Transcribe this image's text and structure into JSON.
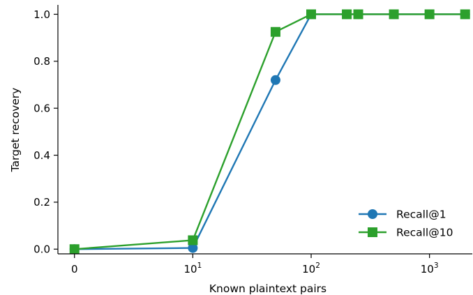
{
  "chart_data": {
    "type": "line",
    "title": "",
    "xlabel": "Known plaintext pairs",
    "ylabel": "Target recovery",
    "x_scale": "symlog",
    "x_linthresh": 10,
    "xlim": [
      -1.4,
      2300
    ],
    "ylim": [
      -0.02,
      1.04
    ],
    "grid": false,
    "legend_position": "lower-right",
    "x_ticks": [
      {
        "value": 0,
        "base": "0",
        "exp": ""
      },
      {
        "value": 10,
        "base": "10",
        "exp": "1"
      },
      {
        "value": 100,
        "base": "10",
        "exp": "2"
      },
      {
        "value": 1000,
        "base": "10",
        "exp": "3"
      }
    ],
    "y_ticks": [
      {
        "value": 0.0,
        "label": "0.0"
      },
      {
        "value": 0.2,
        "label": "0.2"
      },
      {
        "value": 0.4,
        "label": "0.4"
      },
      {
        "value": 0.6,
        "label": "0.6"
      },
      {
        "value": 0.8,
        "label": "0.8"
      },
      {
        "value": 1.0,
        "label": "1.0"
      }
    ],
    "series": [
      {
        "name": "Recall@1",
        "color": "#1f77b4",
        "marker": "circle",
        "x": [
          0,
          10,
          50,
          100,
          200,
          250,
          500,
          1000,
          2000
        ],
        "values": [
          0.0,
          0.005,
          0.72,
          1.0,
          1.0,
          1.0,
          1.0,
          1.0,
          1.0
        ]
      },
      {
        "name": "Recall@10",
        "color": "#2ca02c",
        "marker": "square",
        "x": [
          0,
          10,
          50,
          100,
          200,
          250,
          500,
          1000,
          2000
        ],
        "values": [
          0.0,
          0.038,
          0.925,
          1.0,
          1.0,
          1.0,
          1.0,
          1.0,
          1.0
        ]
      }
    ]
  }
}
